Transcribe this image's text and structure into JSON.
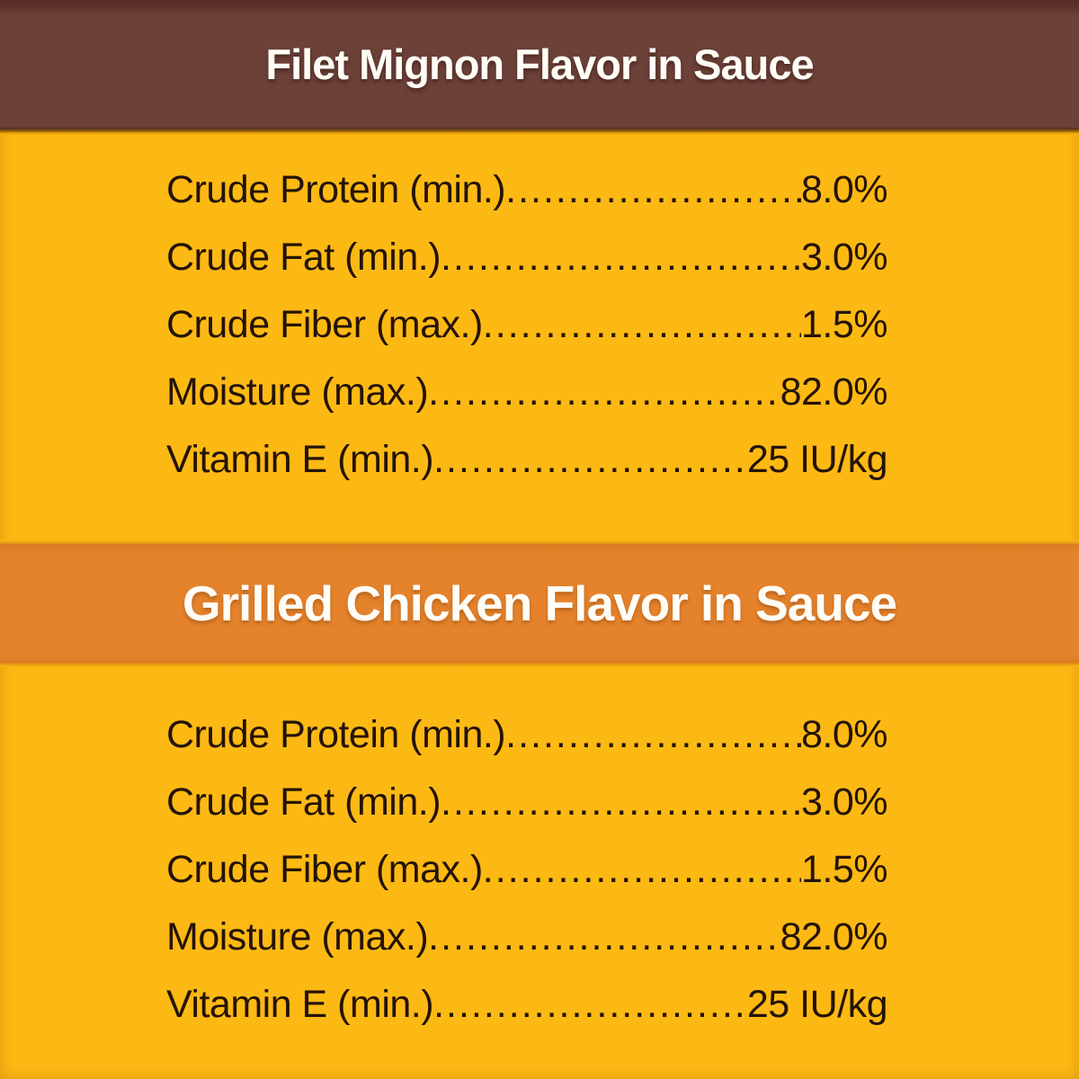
{
  "colors": {
    "background_yellow": "#FDB913",
    "header_brown": "#6B4138",
    "header_orange": "#E5832C",
    "title_text": "#FFFDF6",
    "body_text": "#241307"
  },
  "sections": [
    {
      "id": "filet-mignon",
      "title": "Filet Mignon Flavor in Sauce",
      "rows": [
        {
          "label": "Crude Protein (min.)",
          "value": "8.0%"
        },
        {
          "label": "Crude Fat (min.)",
          "value": "3.0%"
        },
        {
          "label": "Crude Fiber (max.)",
          "value": "1.5%"
        },
        {
          "label": "Moisture (max.)",
          "value": "82.0%"
        },
        {
          "label": "Vitamin E (min.)",
          "value": "25 IU/kg"
        }
      ]
    },
    {
      "id": "grilled-chicken",
      "title": "Grilled Chicken Flavor in Sauce",
      "rows": [
        {
          "label": "Crude Protein (min.)",
          "value": "8.0%"
        },
        {
          "label": "Crude Fat (min.)",
          "value": "3.0%"
        },
        {
          "label": "Crude Fiber (max.)",
          "value": "1.5%"
        },
        {
          "label": "Moisture (max.)",
          "value": "82.0%"
        },
        {
          "label": "Vitamin E (min.)",
          "value": "25 IU/kg"
        }
      ]
    }
  ]
}
